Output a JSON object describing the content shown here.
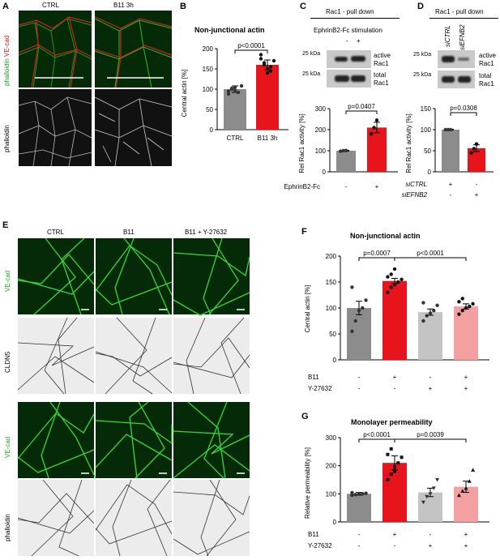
{
  "panel_letters": {
    "A": "A",
    "B": "B",
    "C": "C",
    "D": "D",
    "E": "E",
    "F": "F",
    "G": "G"
  },
  "panelA": {
    "col_labels": [
      "CTRL",
      "B11 3h"
    ],
    "row_label_top": {
      "part1": "phalloidin",
      "part2": "VE-cad"
    },
    "row_label_bottom": "phalloidin"
  },
  "panelB": {
    "title": "Non-junctional actin",
    "ylabel": "Central actin [%]",
    "pvalue": "p<0.0001",
    "yticks": [
      "0",
      "50",
      "100",
      "150",
      "200"
    ],
    "categories": [
      "CTRL",
      "B11 3h"
    ]
  },
  "panelC": {
    "header": "Rac1 - pull down",
    "stim_label": "EphrinB2-Fc stimulation",
    "stim_signs": [
      "-",
      "+"
    ],
    "kda1": "25 kDa",
    "kda2": "25 kDa",
    "blot1_label_a": "active",
    "blot1_label_b": "Rac1",
    "blot2_label_a": "total",
    "blot2_label_b": "Rac1",
    "pvalue": "p=0.0407",
    "ylabel": "Rel Rac1 activity [%]",
    "yticks": [
      "0",
      "100",
      "200",
      "300"
    ],
    "x_row_label": "EphrinB2-Fc",
    "x_signs": [
      "-",
      "+"
    ]
  },
  "panelD": {
    "header": "Rac1 - pull down",
    "lane_labels": [
      "siCTRL",
      "siEFNB2"
    ],
    "kda1": "25 kDa",
    "kda2": "25 kDa",
    "blot1_label_a": "active",
    "blot1_label_b": "Rac1",
    "blot2_label_a": "total",
    "blot2_label_b": "Rac1",
    "pvalue": "p=0.0308",
    "ylabel": "Rel Rac1 activity [%]",
    "yticks": [
      "0",
      "50",
      "100",
      "150"
    ],
    "row1_label": "siCTRL",
    "row1_signs": [
      "+",
      "-"
    ],
    "row2_label": "siEFNB2",
    "row2_signs": [
      "-",
      "+"
    ]
  },
  "panelE": {
    "col_labels": [
      "CTRL",
      "B11",
      "B11 + Y-27632"
    ],
    "row_labels": [
      "VE-cad",
      "CLDN5",
      "VE-cad",
      "phalloidin"
    ]
  },
  "panelF": {
    "title": "Non-junctional actin",
    "ylabel": "Central actin [%]",
    "p1": "p=0.0007",
    "p2": "p<0.0001",
    "yticks": [
      "0",
      "50",
      "100",
      "150",
      "200"
    ],
    "row1_label": "B11",
    "row1_signs": [
      "-",
      "+",
      "-",
      "+"
    ],
    "row2_label": "Y-27632",
    "row2_signs": [
      "-",
      "-",
      "+",
      "+"
    ]
  },
  "panelG": {
    "title": "Monolayer permeability",
    "ylabel": "Relative permeability [%]",
    "p1": "p<0.0001",
    "p2": "p=0.0039",
    "yticks": [
      "0",
      "100",
      "200",
      "300"
    ],
    "row1_label": "B11",
    "row1_signs": [
      "-",
      "+",
      "-",
      "+"
    ],
    "row2_label": "Y-27632",
    "row2_signs": [
      "-",
      "-",
      "+",
      "+"
    ]
  },
  "colors": {
    "grey_bar": "#8c8c8c",
    "red_bar": "#e8141c",
    "light_grey": "#c4c4c4",
    "pink": "#f4a0a0",
    "green": "#2fd43a"
  },
  "chart_data": [
    {
      "id": "B",
      "type": "bar",
      "categories": [
        "CTRL",
        "B11 3h"
      ],
      "values": [
        100,
        160
      ],
      "errors": [
        8,
        12
      ],
      "ylim": [
        0,
        200
      ],
      "points": [
        [
          95,
          100,
          105,
          92,
          108,
          88,
          102,
          98
        ],
        [
          175,
          160,
          150,
          145,
          170,
          185,
          165,
          140,
          155
        ]
      ],
      "colors": [
        "#8c8c8c",
        "#e8141c"
      ]
    },
    {
      "id": "C",
      "type": "bar",
      "categories": [
        "-",
        "+"
      ],
      "values": [
        100,
        210
      ],
      "errors": [
        2,
        25
      ],
      "ylim": [
        0,
        300
      ],
      "points": [
        [
          98,
          100,
          101
        ],
        [
          180,
          210,
          245
        ]
      ],
      "colors": [
        "#8c8c8c",
        "#e8141c"
      ]
    },
    {
      "id": "D",
      "type": "bar",
      "categories": [
        "siCTRL",
        "siEFNB2"
      ],
      "values": [
        100,
        56
      ],
      "errors": [
        1,
        8
      ],
      "ylim": [
        0,
        150
      ],
      "points": [
        [
          100,
          100,
          100
        ],
        [
          45,
          55,
          66
        ]
      ],
      "colors": [
        "#8c8c8c",
        "#e8141c"
      ]
    },
    {
      "id": "F",
      "type": "bar",
      "categories": [
        "CTRL",
        "B11",
        "Y-27632",
        "B11 + Y-27632"
      ],
      "values": [
        100,
        152,
        92,
        103
      ],
      "errors": [
        13,
        5,
        6,
        5
      ],
      "ylim": [
        0,
        200
      ],
      "points": [
        [
          55,
          75,
          95,
          100,
          115,
          140
        ],
        [
          130,
          140,
          145,
          150,
          155,
          160,
          165,
          175
        ],
        [
          75,
          85,
          90,
          95,
          105,
          110
        ],
        [
          88,
          95,
          100,
          103,
          108,
          112,
          118
        ]
      ],
      "colors": [
        "#8c8c8c",
        "#e8141c",
        "#c4c4c4",
        "#f4a0a0"
      ]
    },
    {
      "id": "G",
      "type": "bar",
      "categories": [
        "CTRL",
        "B11",
        "Y-27632",
        "B11 + Y-27632"
      ],
      "values": [
        100,
        210,
        105,
        125
      ],
      "errors": [
        5,
        25,
        15,
        20
      ],
      "ylim": [
        0,
        300
      ],
      "points": [
        [
          95,
          97,
          99,
          100,
          102,
          104
        ],
        [
          150,
          170,
          195,
          210,
          230,
          240,
          260,
          180
        ],
        [
          70,
          90,
          100,
          120,
          150
        ],
        [
          95,
          110,
          120,
          145,
          185
        ]
      ],
      "colors": [
        "#8c8c8c",
        "#e8141c",
        "#c4c4c4",
        "#f4a0a0"
      ]
    }
  ]
}
